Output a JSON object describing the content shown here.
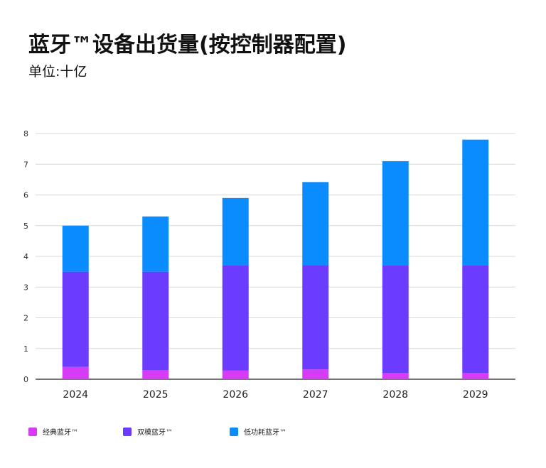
{
  "header": {
    "title": "蓝牙™设备出货量(按控制器配置)",
    "subtitle": "单位:十亿"
  },
  "colors": {
    "classic": "#d63cf5",
    "dual": "#6b3cff",
    "le": "#0a8cff",
    "grid": "#d9d9d9",
    "axis": "#222222"
  },
  "chart_data": {
    "type": "bar",
    "stacked": true,
    "title": "蓝牙™设备出货量(按控制器配置)",
    "subtitle": "单位:十亿",
    "categories": [
      "2024",
      "2025",
      "2026",
      "2027",
      "2028",
      "2029"
    ],
    "series": [
      {
        "name": "经典蓝牙™",
        "values": [
          0.4,
          0.3,
          0.28,
          0.32,
          0.2,
          0.2
        ]
      },
      {
        "name": "双模蓝牙™",
        "values": [
          3.1,
          3.2,
          3.42,
          3.4,
          3.5,
          3.5
        ]
      },
      {
        "name": "低功耗蓝牙™",
        "values": [
          1.5,
          1.8,
          2.2,
          2.7,
          3.4,
          4.1
        ]
      }
    ],
    "ylim": [
      0,
      8
    ],
    "yticks": [
      0,
      1,
      2,
      3,
      4,
      5,
      6,
      7,
      8
    ],
    "grid": true,
    "legend": "bottom-left"
  }
}
